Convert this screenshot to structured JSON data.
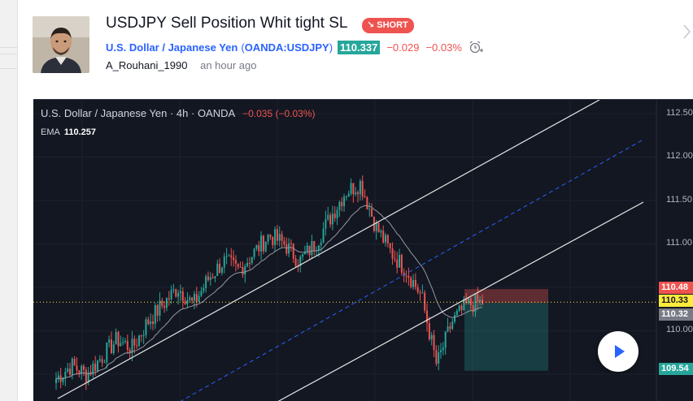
{
  "post": {
    "title": "USDJPY Sell Position Whit tight SL",
    "badge": "SHORT",
    "author": "A_Rouhani_1990",
    "time": "an hour ago"
  },
  "symbol": {
    "name": "U.S. Dollar / Japanese Yen",
    "paren_open": "(",
    "code": "OANDA:USDJPY",
    "paren_close": ")",
    "price": "110.337",
    "change": "−0.029",
    "change_pct": "−0.03%"
  },
  "chart": {
    "legend": "U.S. Dollar / Japanese Yen · 4h · OANDA",
    "legend_change": "−0.035 (−0.03%)",
    "ema_label": "EMA",
    "ema_value": "110.257",
    "axis_ticks": [
      "112.50",
      "112.00",
      "111.50",
      "111.00",
      "110.00"
    ],
    "tags": {
      "stop": "110.48",
      "current": "110.33",
      "entry": "110.32",
      "target": "109.54"
    },
    "colors": {
      "up": "#26a69a",
      "down": "#ef5350",
      "background": "#131722",
      "channel": "#e6e6e6",
      "midline": "#2962ff"
    }
  },
  "icons": [
    "alarm-clock-icon",
    "chevron-right-icon",
    "play-icon",
    "short-arrow-icon"
  ],
  "chart_data": {
    "type": "candlestick",
    "series_name": "USDJPY 4h",
    "ylim": [
      109.3,
      112.6
    ],
    "tick_labels": [
      "112.50",
      "112.00",
      "111.50",
      "111.00",
      "110.00"
    ],
    "grid": true,
    "ohlc_close_samples": [
      109.45,
      109.6,
      109.5,
      109.7,
      109.9,
      109.8,
      110.1,
      110.3,
      110.5,
      110.3,
      110.6,
      110.8,
      110.7,
      110.9,
      111.1,
      111.0,
      110.8,
      111.0,
      111.3,
      111.6,
      111.7,
      111.2,
      110.9,
      110.7,
      110.4,
      109.6,
      110.1,
      110.3,
      110.33
    ],
    "ema_last": 110.257,
    "position": {
      "side": "short",
      "entry": 110.32,
      "stop": 110.48,
      "target": 109.54
    }
  }
}
